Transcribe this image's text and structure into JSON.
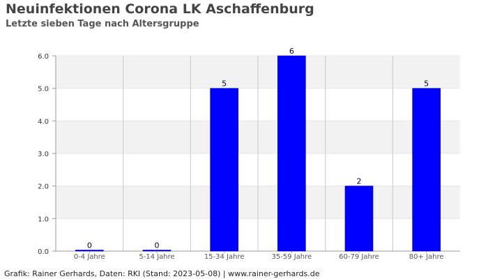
{
  "title": "Neuinfektionen Corona LK Aschaffenburg",
  "subtitle": "Letzte sieben Tage nach Altersgruppe",
  "footer": "Grafik: Rainer Gerhards, Daten: RKI (Stand: 2023-05-08) | www.rainer-gerhards.de",
  "chart_data": {
    "type": "bar",
    "title": "Neuinfektionen Corona LK Aschaffenburg",
    "subtitle": "Letzte sieben Tage nach Altersgruppe",
    "categories": [
      "0-4 Jahre",
      "5-14 Jahre",
      "15-34 Jahre",
      "35-59 Jahre",
      "60-79 Jahre",
      "80+ Jahre"
    ],
    "values": [
      0,
      0,
      5,
      6,
      2,
      5
    ],
    "data_labels": [
      "0",
      "0",
      "5",
      "6",
      "2",
      "5"
    ],
    "ylim": [
      0,
      6
    ],
    "yticks": [
      "0.0",
      "1.0",
      "2.0",
      "3.0",
      "4.0",
      "5.0",
      "6.0"
    ],
    "grid": true,
    "bar_color": "#0000ff",
    "band_color": "#f2f2f2",
    "label_color": "#000033"
  }
}
